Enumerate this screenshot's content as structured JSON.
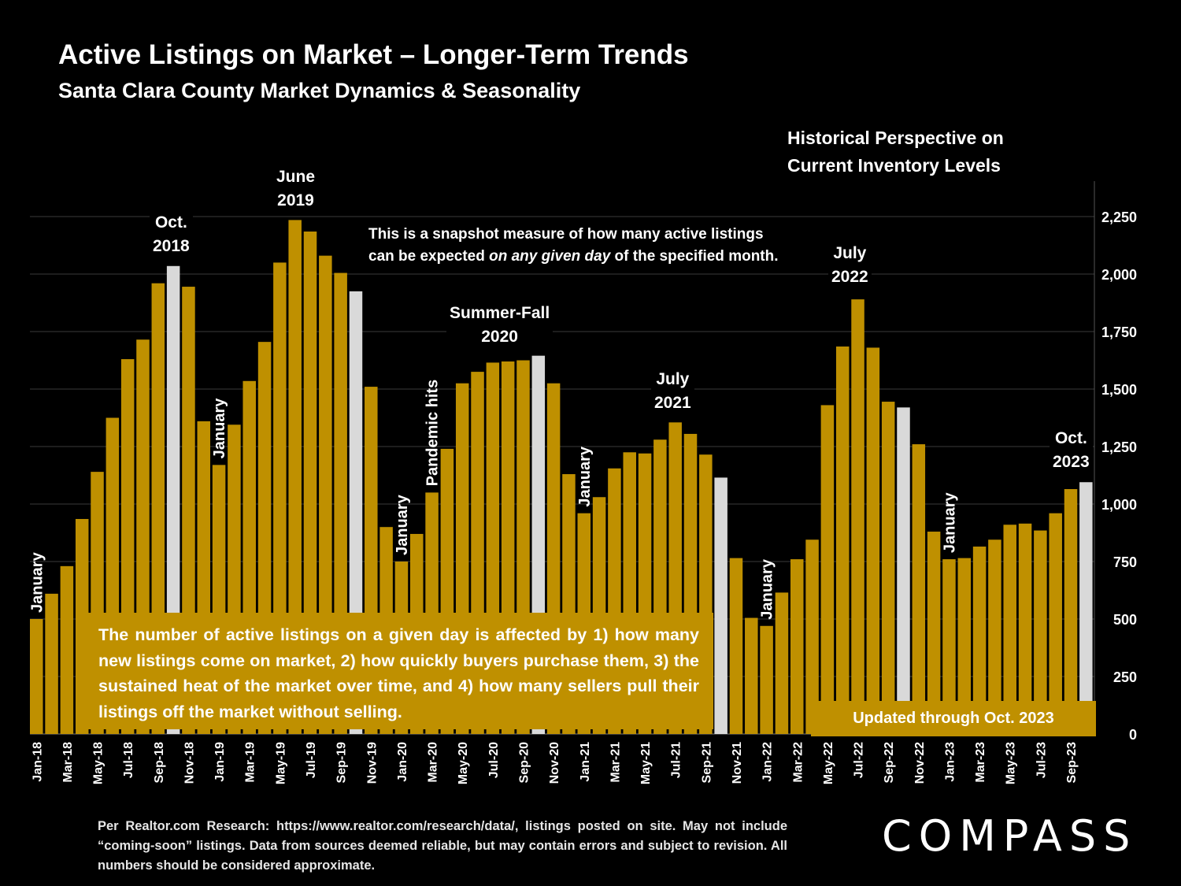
{
  "header": {
    "title": "Active Listings on Market – Longer-Term Trends",
    "subtitle": "Santa Clara County Market Dynamics & Seasonality"
  },
  "perspective": {
    "line1": "Historical Perspective on",
    "line2": "Current Inventory Levels"
  },
  "snapshot_note": {
    "line1": "This is a snapshot measure of how many active listings",
    "line2_pre": "can be expected ",
    "line2_em": "on any given day",
    "line2_post": " of the specified month."
  },
  "annotations": {
    "oct2018": [
      "Oct.",
      "2018"
    ],
    "jun2019": [
      "June",
      "2019"
    ],
    "summerfall2020": [
      "Summer-Fall",
      "2020"
    ],
    "jul2021": [
      "July",
      "2021"
    ],
    "jul2022": [
      "July",
      "2022"
    ],
    "oct2023": [
      "Oct.",
      "2023"
    ],
    "pandemic": "Pandemic hits",
    "january": "January"
  },
  "note_box": "The number of active listings on a given day is affected by 1) how many new listings come on market, 2) how quickly buyers purchase them, 3) the sustained heat of the market over time, and 4) how many sellers pull their listings off the market without selling.",
  "updated_box": "Updated through Oct. 2023",
  "source": "Per Realtor.com Research:  https://www.realtor.com/research/data/, listings posted on site. May not include “coming-soon” listings. Data from sources deemed reliable, but may contain errors and subject to revision. All numbers should be considered approximate.",
  "logo": "COMPASS",
  "colors": {
    "bar": "#bf9000",
    "highlight": "#d9d9d9",
    "background": "#000000",
    "grid": "#3a3a3a"
  },
  "chart_data": {
    "type": "bar",
    "title": "Active Listings on Market – Longer-Term Trends",
    "ylim": [
      0,
      2400
    ],
    "yticks": [
      0,
      250,
      500,
      750,
      1000,
      1250,
      1500,
      1750,
      2000,
      2250
    ],
    "ytick_labels": [
      "0",
      "250",
      "500",
      "750",
      "1,000",
      "1,250",
      "1,500",
      "1,750",
      "2,000",
      "2,250"
    ],
    "categories": [
      "Jan-18",
      "Feb-18",
      "Mar-18",
      "Apr-18",
      "May-18",
      "Jun-18",
      "Jul-18",
      "Aug-18",
      "Sep-18",
      "Oct-18",
      "Nov-18",
      "Dec-18",
      "Jan-19",
      "Feb-19",
      "Mar-19",
      "Apr-19",
      "May-19",
      "Jun-19",
      "Jul-19",
      "Aug-19",
      "Sep-19",
      "Oct-19",
      "Nov-19",
      "Dec-19",
      "Jan-20",
      "Feb-20",
      "Mar-20",
      "Apr-20",
      "May-20",
      "Jun-20",
      "Jul-20",
      "Aug-20",
      "Sep-20",
      "Oct-20",
      "Nov-20",
      "Dec-20",
      "Jan-21",
      "Feb-21",
      "Mar-21",
      "Apr-21",
      "May-21",
      "Jun-21",
      "Jul-21",
      "Aug-21",
      "Sep-21",
      "Oct-21",
      "Nov-21",
      "Dec-21",
      "Jan-22",
      "Feb-22",
      "Mar-22",
      "Apr-22",
      "May-22",
      "Jun-22",
      "Jul-22",
      "Aug-22",
      "Sep-22",
      "Oct-22",
      "Nov-22",
      "Dec-22",
      "Jan-23",
      "Feb-23",
      "Mar-23",
      "Apr-23",
      "May-23",
      "Jun-23",
      "Jul-23",
      "Aug-23",
      "Sep-23",
      "Oct-23"
    ],
    "tick_labels_shown": [
      "Jan-18",
      "Mar-18",
      "May-18",
      "Jul-18",
      "Sep-18",
      "Nov-18",
      "Jan-19",
      "Mar-19",
      "May-19",
      "Jul-19",
      "Sep-19",
      "Nov-19",
      "Jan-20",
      "Mar-20",
      "May-20",
      "Jul-20",
      "Sep-20",
      "Nov-20",
      "Jan-21",
      "Mar-21",
      "May-21",
      "Jul-21",
      "Sep-21",
      "Nov-21",
      "Jan-22",
      "Mar-22",
      "May-22",
      "Jul-22",
      "Sep-22",
      "Nov-22",
      "Jan-23",
      "Mar-23",
      "May-23",
      "Jul-23",
      "Sep-23"
    ],
    "values": [
      500,
      610,
      730,
      935,
      1140,
      1375,
      1630,
      1715,
      1960,
      2035,
      1945,
      1360,
      1170,
      1345,
      1535,
      1705,
      2050,
      2235,
      2185,
      2080,
      2005,
      1925,
      1510,
      900,
      750,
      870,
      1050,
      1240,
      1525,
      1575,
      1615,
      1620,
      1625,
      1645,
      1525,
      1130,
      960,
      1030,
      1155,
      1225,
      1220,
      1280,
      1355,
      1305,
      1215,
      1115,
      765,
      505,
      470,
      615,
      760,
      845,
      1430,
      1685,
      1890,
      1680,
      1445,
      1420,
      1260,
      880,
      760,
      765,
      815,
      845,
      910,
      915,
      885,
      960,
      1065,
      1095
    ],
    "highlighted": [
      "Oct-18",
      "Oct-19",
      "Oct-20",
      "Oct-21",
      "Oct-22",
      "Oct-23"
    ]
  }
}
